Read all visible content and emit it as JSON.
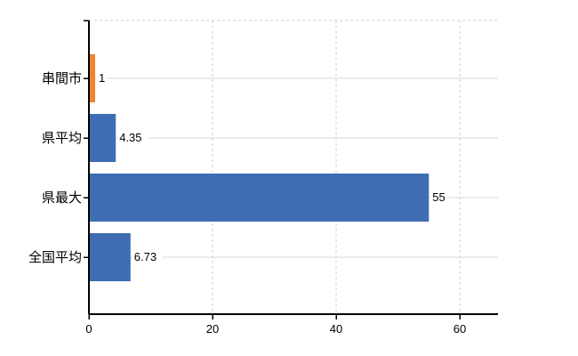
{
  "page": {
    "background_color": "#ffffff"
  },
  "chart_data": {
    "type": "bar",
    "orientation": "horizontal",
    "title": "",
    "subtitle": "",
    "xlabel": "",
    "ylabel": "",
    "categories": [
      "串間市",
      "県平均",
      "県最大",
      "全国平均"
    ],
    "values": [
      1,
      4.35,
      55,
      6.73
    ],
    "value_labels": [
      "1",
      "4.35",
      "55",
      "6.73"
    ],
    "bar_colors": [
      "#EE862E",
      "#3E6DB3",
      "#3E6DB3",
      "#3E6DB3"
    ],
    "highlight_category": "串間市",
    "highlight_color": "#EE862E",
    "base_color": "#3E6DB3",
    "x_ticks": [
      0,
      20,
      40,
      60
    ],
    "x_tick_labels": [
      "0",
      "20",
      "40",
      "60"
    ],
    "xlim": [
      0,
      66.2
    ],
    "grid": {
      "vertical_gridlines": "dashed at each x tick",
      "horizontal_category_lines": "solid light gray at each category center",
      "top_border": "dashed"
    },
    "legend": "none"
  }
}
